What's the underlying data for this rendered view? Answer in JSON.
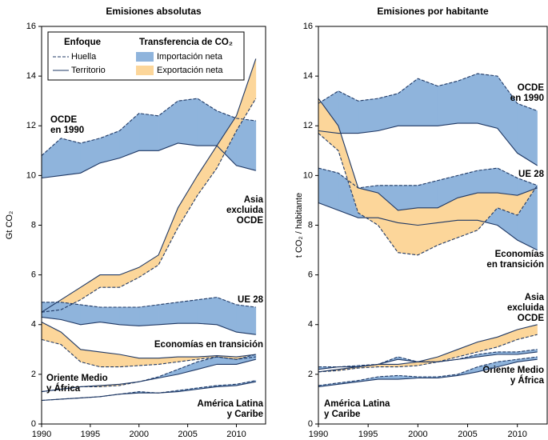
{
  "chart_data": [
    {
      "type": "line",
      "title": "Emisiones absolutas",
      "ylabel": "Gt CO₂",
      "x": [
        1990,
        1992,
        1994,
        1996,
        1998,
        2000,
        2002,
        2004,
        2006,
        2008,
        2010,
        2012
      ],
      "xlim": [
        1990,
        2013
      ],
      "xticks": [
        1990,
        1995,
        2000,
        2005,
        2010
      ],
      "ylim": [
        0,
        16
      ],
      "yticks": [
        0,
        2,
        4,
        6,
        8,
        10,
        12,
        14,
        16
      ],
      "line_color": "#1f3864",
      "import_color": "#8fb4dc",
      "export_color": "#fcd69a",
      "legend": {
        "approach_title": "Enfoque",
        "footprint": "Huella",
        "territory": "Territorio",
        "transfer_title": "Transferencia de CO₂",
        "import": "Importación neta",
        "export": "Exportación neta"
      },
      "regions": [
        {
          "label": [
            "OCDE",
            "en 1990"
          ],
          "footprint": [
            10.8,
            11.5,
            11.3,
            11.5,
            11.8,
            12.5,
            12.4,
            13.0,
            13.1,
            12.6,
            12.3,
            12.2
          ],
          "territory": [
            9.9,
            10.0,
            10.1,
            10.5,
            10.7,
            11.0,
            11.0,
            11.3,
            11.2,
            11.2,
            10.4,
            10.2
          ]
        },
        {
          "label": [
            "Asia",
            "excluida",
            "OCDE"
          ],
          "footprint": [
            4.5,
            4.6,
            5.0,
            5.5,
            5.5,
            5.9,
            6.4,
            7.9,
            9.2,
            10.3,
            11.8,
            13.1
          ],
          "territory": [
            4.5,
            5.0,
            5.5,
            6.0,
            6.0,
            6.3,
            6.8,
            8.7,
            10.0,
            11.2,
            12.4,
            14.7
          ]
        },
        {
          "label": [
            "UE 28"
          ],
          "footprint": [
            4.9,
            4.9,
            4.8,
            4.7,
            4.7,
            4.7,
            4.8,
            4.9,
            5.0,
            5.1,
            4.8,
            4.7
          ],
          "territory": [
            4.3,
            4.2,
            4.0,
            4.1,
            4.0,
            3.95,
            4.0,
            4.05,
            4.05,
            4.0,
            3.7,
            3.6
          ]
        },
        {
          "label": [
            "Economías en transición"
          ],
          "footprint": [
            3.4,
            3.2,
            2.5,
            2.3,
            2.3,
            2.35,
            2.4,
            2.5,
            2.6,
            2.7,
            2.6,
            2.7
          ],
          "territory": [
            4.1,
            3.7,
            3.0,
            2.9,
            2.8,
            2.65,
            2.65,
            2.7,
            2.7,
            2.75,
            2.7,
            2.8
          ]
        },
        {
          "label": [
            "Oriente Medio",
            "y África"
          ],
          "footprint": [
            1.3,
            1.4,
            1.5,
            1.5,
            1.55,
            1.7,
            1.9,
            2.2,
            2.5,
            2.7,
            2.6,
            2.8
          ],
          "territory": [
            1.3,
            1.4,
            1.5,
            1.55,
            1.6,
            1.7,
            1.85,
            2.0,
            2.2,
            2.4,
            2.4,
            2.6
          ]
        },
        {
          "label": [
            "América Latina",
            "y Caribe"
          ],
          "footprint": [
            0.95,
            1.0,
            1.05,
            1.1,
            1.2,
            1.3,
            1.25,
            1.35,
            1.45,
            1.55,
            1.6,
            1.75
          ],
          "territory": [
            0.95,
            1.0,
            1.05,
            1.1,
            1.2,
            1.25,
            1.25,
            1.3,
            1.4,
            1.5,
            1.55,
            1.7
          ]
        }
      ]
    },
    {
      "type": "line",
      "title": "Emisiones por habitante",
      "ylabel": "t CO₂ / habitante",
      "x": [
        1990,
        1992,
        1994,
        1996,
        1998,
        2000,
        2002,
        2004,
        2006,
        2008,
        2010,
        2012
      ],
      "xlim": [
        1990,
        2013
      ],
      "xticks": [
        1990,
        1995,
        2000,
        2005,
        2010
      ],
      "ylim": [
        0,
        16
      ],
      "yticks": [
        0,
        2,
        4,
        6,
        8,
        10,
        12,
        14,
        16
      ],
      "line_color": "#1f3864",
      "import_color": "#8fb4dc",
      "export_color": "#fcd69a",
      "regions": [
        {
          "label": [
            "OCDE",
            "en 1990"
          ],
          "footprint": [
            12.9,
            13.4,
            13.0,
            13.1,
            13.3,
            13.9,
            13.6,
            13.8,
            14.1,
            14.0,
            12.9,
            12.6
          ],
          "territory": [
            11.8,
            11.7,
            11.7,
            11.8,
            12.0,
            12.0,
            12.0,
            12.1,
            12.1,
            11.9,
            10.9,
            10.4
          ]
        },
        {
          "label": [
            "UE 28"
          ],
          "footprint": [
            10.3,
            10.1,
            9.5,
            9.6,
            9.6,
            9.6,
            9.8,
            10.0,
            10.2,
            10.3,
            9.9,
            9.6
          ],
          "territory": [
            8.9,
            8.6,
            8.3,
            8.3,
            8.1,
            8.0,
            8.1,
            8.2,
            8.2,
            8.0,
            7.4,
            7.0
          ]
        },
        {
          "label": [
            "Economías",
            "en transición"
          ],
          "footprint": [
            11.7,
            11.0,
            8.5,
            8.0,
            6.9,
            6.8,
            7.2,
            7.5,
            7.8,
            8.7,
            8.4,
            9.6
          ],
          "territory": [
            13.1,
            12.0,
            9.5,
            9.3,
            8.6,
            8.7,
            8.7,
            9.1,
            9.3,
            9.3,
            9.2,
            9.5
          ]
        },
        {
          "label": [
            "Asia",
            "excluida",
            "OCDE"
          ],
          "footprint": [
            2.1,
            2.15,
            2.25,
            2.3,
            2.3,
            2.35,
            2.5,
            2.7,
            2.9,
            3.1,
            3.4,
            3.6
          ],
          "territory": [
            2.1,
            2.2,
            2.3,
            2.4,
            2.4,
            2.5,
            2.7,
            3.0,
            3.3,
            3.5,
            3.8,
            4.0
          ]
        },
        {
          "label": [
            "Oriente Medio",
            "y África"
          ],
          "footprint": [
            2.3,
            2.3,
            2.35,
            2.4,
            2.7,
            2.5,
            2.5,
            2.6,
            2.8,
            2.9,
            2.9,
            3.0
          ],
          "territory": [
            2.2,
            2.3,
            2.3,
            2.4,
            2.6,
            2.5,
            2.5,
            2.6,
            2.7,
            2.8,
            2.8,
            2.9
          ]
        },
        {
          "label": [
            "América Latina",
            "y Caribe"
          ],
          "footprint": [
            1.55,
            1.65,
            1.75,
            1.9,
            1.95,
            1.9,
            1.9,
            2.0,
            2.3,
            2.5,
            2.6,
            2.7
          ],
          "territory": [
            1.5,
            1.6,
            1.7,
            1.8,
            1.8,
            1.85,
            1.85,
            1.95,
            2.1,
            2.3,
            2.5,
            2.6
          ]
        }
      ]
    }
  ]
}
